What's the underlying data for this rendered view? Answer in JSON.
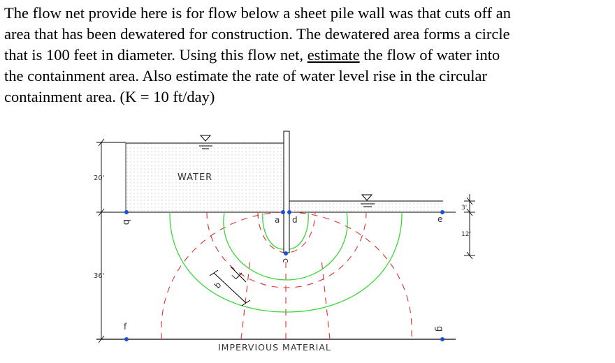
{
  "problem": {
    "lines": [
      "The flow net provide here is for flow below a sheet pile wall was that cuts off an",
      "area that has been dewatered for construction.  The dewatered area forms a circle",
      "that is 100 feet in diameter.  Using this flow net, ",
      " the flow of water into",
      "the containment area.  Also estimate the rate of water level rise in the circular",
      "containment area.  (K = 10 ft/day)"
    ],
    "emphasis": "estimate"
  },
  "diagram": {
    "water_label": "WATER",
    "impervious_label": "IMPERVIOUS  MATERIAL",
    "dim_left_upper": "20'",
    "dim_left_lower": "36'",
    "dim_right_top": "3'",
    "dim_right_mid": "12'",
    "dim_element": "b",
    "dim_element2": "l",
    "points": {
      "a": "a",
      "b": "b",
      "c": "c",
      "d": "d",
      "e": "e",
      "f": "f",
      "g": "g"
    },
    "colors": {
      "equipotential": "#3ad63a",
      "flowline": "#e03030",
      "node": "#1a4fd6",
      "water_dot": "#c9c9c9",
      "line": "#000000"
    }
  }
}
